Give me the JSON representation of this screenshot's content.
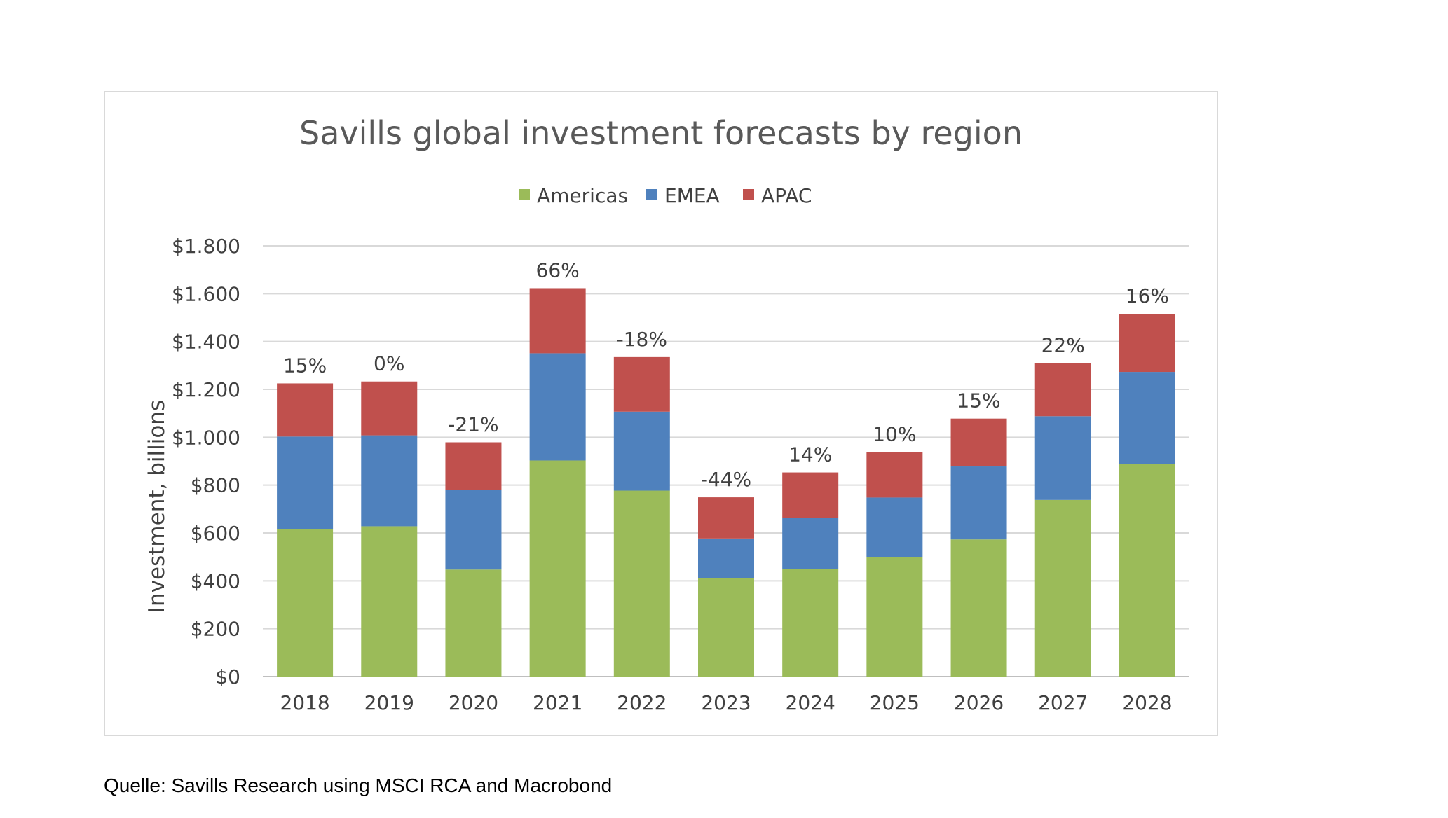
{
  "chart_data": {
    "type": "bar",
    "stacked": true,
    "title": "Savills global investment forecasts by region",
    "ylabel": "Investment, billions",
    "xlabel": "",
    "ylim": [
      0,
      1800
    ],
    "yticks": [
      0,
      200,
      400,
      600,
      800,
      1000,
      1200,
      1400,
      1600,
      1800
    ],
    "ytick_labels": [
      "$0",
      "$200",
      "$400",
      "$600",
      "$800",
      "$1.000",
      "$1.200",
      "$1.400",
      "$1.600",
      "$1.800"
    ],
    "grid": true,
    "legend_position": "top-center",
    "categories": [
      "2018",
      "2019",
      "2020",
      "2021",
      "2022",
      "2023",
      "2024",
      "2025",
      "2026",
      "2027",
      "2028"
    ],
    "series": [
      {
        "name": "Americas",
        "color": "#9bbb59",
        "values": [
          615,
          628,
          447,
          903,
          777,
          410,
          448,
          500,
          573,
          738,
          888
        ]
      },
      {
        "name": "EMEA",
        "color": "#4f81bd",
        "values": [
          388,
          380,
          332,
          448,
          330,
          167,
          215,
          248,
          305,
          350,
          385
        ]
      },
      {
        "name": "APAC",
        "color": "#c0504d",
        "values": [
          222,
          225,
          200,
          272,
          228,
          172,
          190,
          190,
          200,
          222,
          243
        ]
      }
    ],
    "data_labels": [
      "15%",
      "0%",
      "-21%",
      "66%",
      "-18%",
      "-44%",
      "14%",
      "10%",
      "15%",
      "22%",
      "16%"
    ]
  },
  "source_note": "Quelle: Savills Research using MSCI RCA and Macrobond"
}
